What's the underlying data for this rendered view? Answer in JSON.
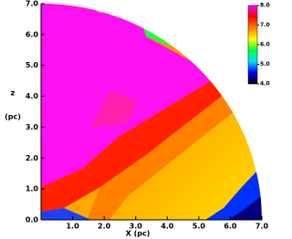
{
  "chart_data": {
    "type": "heatmap",
    "xlabel": "X (pc)",
    "ylabel": [
      "z",
      "(pc)"
    ],
    "xlim": [
      0,
      7
    ],
    "ylim": [
      0,
      7
    ],
    "xticks": [
      {
        "value": 1,
        "label": "1.0"
      },
      {
        "value": 2,
        "label": "2.0"
      },
      {
        "value": 3,
        "label": "3.0"
      },
      {
        "value": 4,
        "label": "4.0"
      },
      {
        "value": 5,
        "label": "5.0"
      },
      {
        "value": 6,
        "label": "6.0"
      },
      {
        "value": 7,
        "label": "7.0"
      }
    ],
    "yticks": [
      {
        "value": 0,
        "label": "0.0"
      },
      {
        "value": 1,
        "label": "1.0"
      },
      {
        "value": 2,
        "label": "2.0"
      },
      {
        "value": 3,
        "label": "3.0"
      },
      {
        "value": 4,
        "label": "4.0"
      },
      {
        "value": 5,
        "label": "5.0"
      },
      {
        "value": 6,
        "label": "6.0"
      },
      {
        "value": 7,
        "label": "7.0"
      }
    ],
    "colorbar": {
      "lim": [
        4,
        8
      ],
      "ticks": [
        {
          "value": 8,
          "label": "8.0"
        },
        {
          "value": 7,
          "label": "7.0"
        },
        {
          "value": 6,
          "label": "6.0"
        },
        {
          "value": 5,
          "label": "5.0"
        },
        {
          "value": 4,
          "label": "4.0"
        }
      ],
      "colors": [
        "#000000",
        "#0000ff",
        "#00e0ff",
        "#00ff40",
        "#ffff00",
        "#ff8000",
        "#ff0000",
        "#ff00ff"
      ]
    }
  }
}
